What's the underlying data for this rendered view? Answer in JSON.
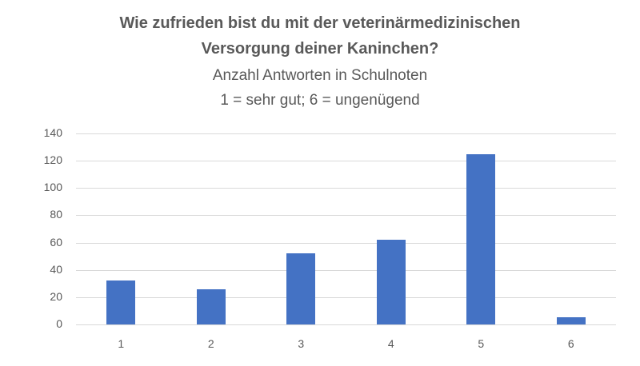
{
  "chart_data": {
    "type": "bar",
    "title": "Wie zufrieden bist du mit der veterinärmedizinischen Versorgung deiner Kaninchen?",
    "title_lines": [
      "Wie zufrieden bist du mit der veterinärmedizinischen",
      "Versorgung deiner Kaninchen?"
    ],
    "subtitle_lines": [
      "Anzahl Antworten in Schulnoten",
      "1 = sehr gut; 6 = ungenügend"
    ],
    "categories": [
      "1",
      "2",
      "3",
      "4",
      "5",
      "6"
    ],
    "values": [
      32,
      26,
      52,
      62,
      125,
      5
    ],
    "xlabel": "",
    "ylabel": "",
    "ylim": [
      0,
      140
    ],
    "yticks": [
      "0",
      "20",
      "40",
      "60",
      "80",
      "100",
      "120",
      "140"
    ],
    "grid": true,
    "legend": null,
    "bar_color": "#4472c4"
  }
}
